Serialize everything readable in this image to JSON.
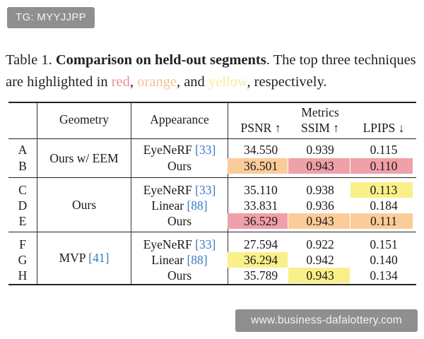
{
  "watermarks": {
    "top_left": "TG: MYYJJPP",
    "bottom_right": "www.business-dafalottery.com"
  },
  "caption": {
    "prefix": "Table 1.",
    "title": "Comparison on held-out segments",
    "text1": ". The top three techniques are highlighted in ",
    "red": "red",
    "sep1": ", ",
    "orange": "orange",
    "sep2": ", and ",
    "yellow": "yellow",
    "text2": ", respectively."
  },
  "highlight_colors": {
    "red": "#f0a0a8",
    "orange": "#fbcc9a",
    "yellow": "#f9f08a"
  },
  "header": {
    "geometry": "Geometry",
    "appearance": "Appearance",
    "metrics": "Metrics",
    "psnr": "PSNR ↑",
    "ssim": "SSIM ↑",
    "lpips": "LPIPS ↓"
  },
  "groups": [
    {
      "geometry": "Ours w/ EEM",
      "geometry_cite": ""
    },
    {
      "geometry": "Ours",
      "geometry_cite": ""
    },
    {
      "geometry": "MVP ",
      "geometry_cite": "[41]"
    }
  ],
  "rows": [
    {
      "id": "A",
      "appearance": "EyeNeRF ",
      "cite": "[33]",
      "psnr": "34.550",
      "ssim": "0.939",
      "lpips": "0.115",
      "hl": [
        "",
        "",
        ""
      ]
    },
    {
      "id": "B",
      "appearance": "Ours",
      "cite": "",
      "psnr": "36.501",
      "ssim": "0.943",
      "lpips": "0.110",
      "hl": [
        "orange",
        "red",
        "red"
      ]
    },
    {
      "id": "C",
      "appearance": "EyeNeRF ",
      "cite": "[33]",
      "psnr": "35.110",
      "ssim": "0.938",
      "lpips": "0.113",
      "hl": [
        "",
        "",
        "yellow"
      ]
    },
    {
      "id": "D",
      "appearance": "Linear ",
      "cite": "[88]",
      "psnr": "33.831",
      "ssim": "0.936",
      "lpips": "0.184",
      "hl": [
        "",
        "",
        ""
      ]
    },
    {
      "id": "E",
      "appearance": "Ours",
      "cite": "",
      "psnr": "36.529",
      "ssim": "0.943",
      "lpips": "0.111",
      "hl": [
        "red",
        "orange",
        "orange"
      ]
    },
    {
      "id": "F",
      "appearance": "EyeNeRF ",
      "cite": "[33]",
      "psnr": "27.594",
      "ssim": "0.922",
      "lpips": "0.151",
      "hl": [
        "",
        "",
        ""
      ]
    },
    {
      "id": "G",
      "appearance": "Linear ",
      "cite": "[88]",
      "psnr": "36.294",
      "ssim": "0.942",
      "lpips": "0.140",
      "hl": [
        "yellow",
        "",
        ""
      ]
    },
    {
      "id": "H",
      "appearance": "Ours",
      "cite": "",
      "psnr": "35.789",
      "ssim": "0.943",
      "lpips": "0.134",
      "hl": [
        "",
        "yellow",
        ""
      ]
    }
  ]
}
